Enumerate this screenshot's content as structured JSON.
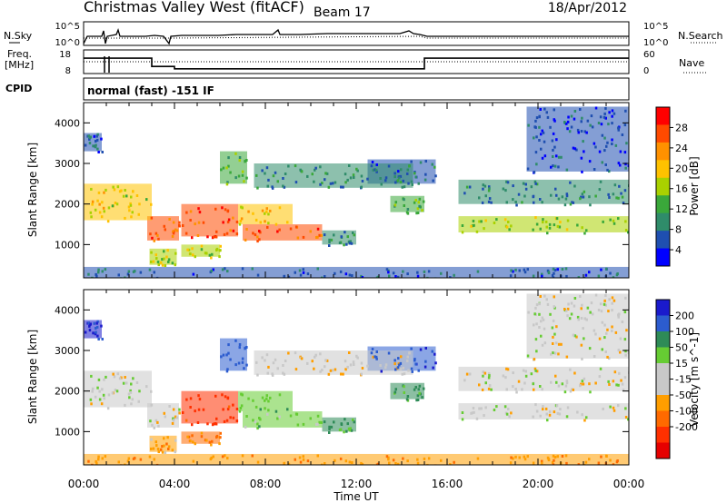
{
  "header": {
    "station": "Christmas Valley West (fitACF)",
    "beam": "Beam 17",
    "date": "18/Apr/2012"
  },
  "param_panels": {
    "noise": {
      "left_label": "N.Sky",
      "right_label": "N.Search",
      "left_ticks": [
        "10^5",
        "10^0"
      ],
      "right_ticks": [
        "10^5",
        "10^0"
      ]
    },
    "freq": {
      "left_label_1": "Freq.",
      "left_label_2": "[MHz]",
      "right_label": "Nave",
      "left_ticks": [
        "18",
        "8"
      ],
      "right_ticks": [
        "60",
        "0"
      ]
    },
    "cpid": {
      "left_label": "CPID",
      "value": "normal (fast) -151 IF"
    }
  },
  "axes": {
    "ylabel": "Slant Range [km]",
    "xlabel": "Time UT",
    "xticks": [
      "00:00",
      "04:00",
      "08:00",
      "12:00",
      "16:00",
      "20:00",
      "00:00"
    ],
    "yticks": [
      "1000",
      "2000",
      "3000",
      "4000"
    ]
  },
  "colorbars": {
    "power": {
      "label": "Power [dB]",
      "ticks": [
        "28",
        "24",
        "20",
        "16",
        "12",
        "8",
        "4"
      ],
      "colors": [
        "#ff0000",
        "#ff4a00",
        "#ff9100",
        "#ffc200",
        "#a9d100",
        "#3aa83a",
        "#2f8c6a",
        "#1f4fb0",
        "#0000ff"
      ]
    },
    "velocity": {
      "label": "Velocity [m s^-1]",
      "ticks": [
        "200",
        "100",
        "50",
        "15",
        "-15",
        "-50",
        "-100",
        "-200"
      ],
      "colors": [
        "#1a1acc",
        "#2c5ccf",
        "#2e8b57",
        "#66cc33",
        "#c8c8c8",
        "#c8c8c8",
        "#ff9e00",
        "#ff6a00",
        "#ff3000",
        "#e60000"
      ]
    }
  },
  "chart_data": {
    "type": "heatmap",
    "x_range_hours": [
      0,
      24
    ],
    "y_range_km": [
      180,
      4500
    ],
    "range_gate_bands": [
      {
        "t0": 0.0,
        "t1": 3.0,
        "r0": 1600,
        "r1": 2500,
        "power": 18,
        "velocity": 0
      },
      {
        "t0": 0.0,
        "t1": 0.8,
        "r0": 3300,
        "r1": 3750,
        "power": 6,
        "velocity": 200
      },
      {
        "t0": 2.8,
        "t1": 4.2,
        "r0": 1100,
        "r1": 1700,
        "power": 25,
        "velocity": 0
      },
      {
        "t0": 2.9,
        "t1": 4.1,
        "r0": 500,
        "r1": 900,
        "power": 17,
        "velocity": -30
      },
      {
        "t0": 4.3,
        "t1": 6.8,
        "r0": 1200,
        "r1": 2000,
        "power": 27,
        "velocity": -120
      },
      {
        "t0": 4.3,
        "t1": 6.0,
        "r0": 700,
        "r1": 1000,
        "power": 16,
        "velocity": -60
      },
      {
        "t0": 6.0,
        "t1": 7.2,
        "r0": 2500,
        "r1": 3300,
        "power": 12,
        "velocity": 150
      },
      {
        "t0": 6.8,
        "t1": 9.2,
        "r0": 1500,
        "r1": 2000,
        "power": 20,
        "velocity": 40
      },
      {
        "t0": 7.0,
        "t1": 10.5,
        "r0": 1100,
        "r1": 1500,
        "power": 26,
        "velocity": 30
      },
      {
        "t0": 7.5,
        "t1": 14.5,
        "r0": 2400,
        "r1": 3000,
        "power": 8,
        "velocity": -10
      },
      {
        "t0": 10.5,
        "t1": 12.0,
        "r0": 1000,
        "r1": 1350,
        "power": 9,
        "velocity": 60
      },
      {
        "t0": 12.5,
        "t1": 15.5,
        "r0": 2500,
        "r1": 3100,
        "power": 7,
        "velocity": 190
      },
      {
        "t0": 13.5,
        "t1": 15.0,
        "r0": 1800,
        "r1": 2200,
        "power": 12,
        "velocity": 60
      },
      {
        "t0": 16.5,
        "t1": 24.0,
        "r0": 2000,
        "r1": 2600,
        "power": 8,
        "velocity": 0
      },
      {
        "t0": 16.5,
        "t1": 24.0,
        "r0": 1300,
        "r1": 1700,
        "power": 15,
        "velocity": 0
      },
      {
        "t0": 19.5,
        "t1": 24.0,
        "r0": 2800,
        "r1": 4400,
        "power": 5,
        "velocity": 0
      },
      {
        "t0": 0.0,
        "t1": 24.0,
        "r0": 180,
        "r1": 450,
        "power": 6,
        "velocity": -40
      }
    ],
    "frequency_segments": [
      {
        "t0": 0.0,
        "t1": 3.0,
        "freq_mhz": 14.5
      },
      {
        "t0": 3.0,
        "t1": 4.0,
        "freq_mhz": 11
      },
      {
        "t0": 4.0,
        "t1": 15.0,
        "freq_mhz": 10
      },
      {
        "t0": 15.0,
        "t1": 24.0,
        "freq_mhz": 14.5
      }
    ]
  }
}
